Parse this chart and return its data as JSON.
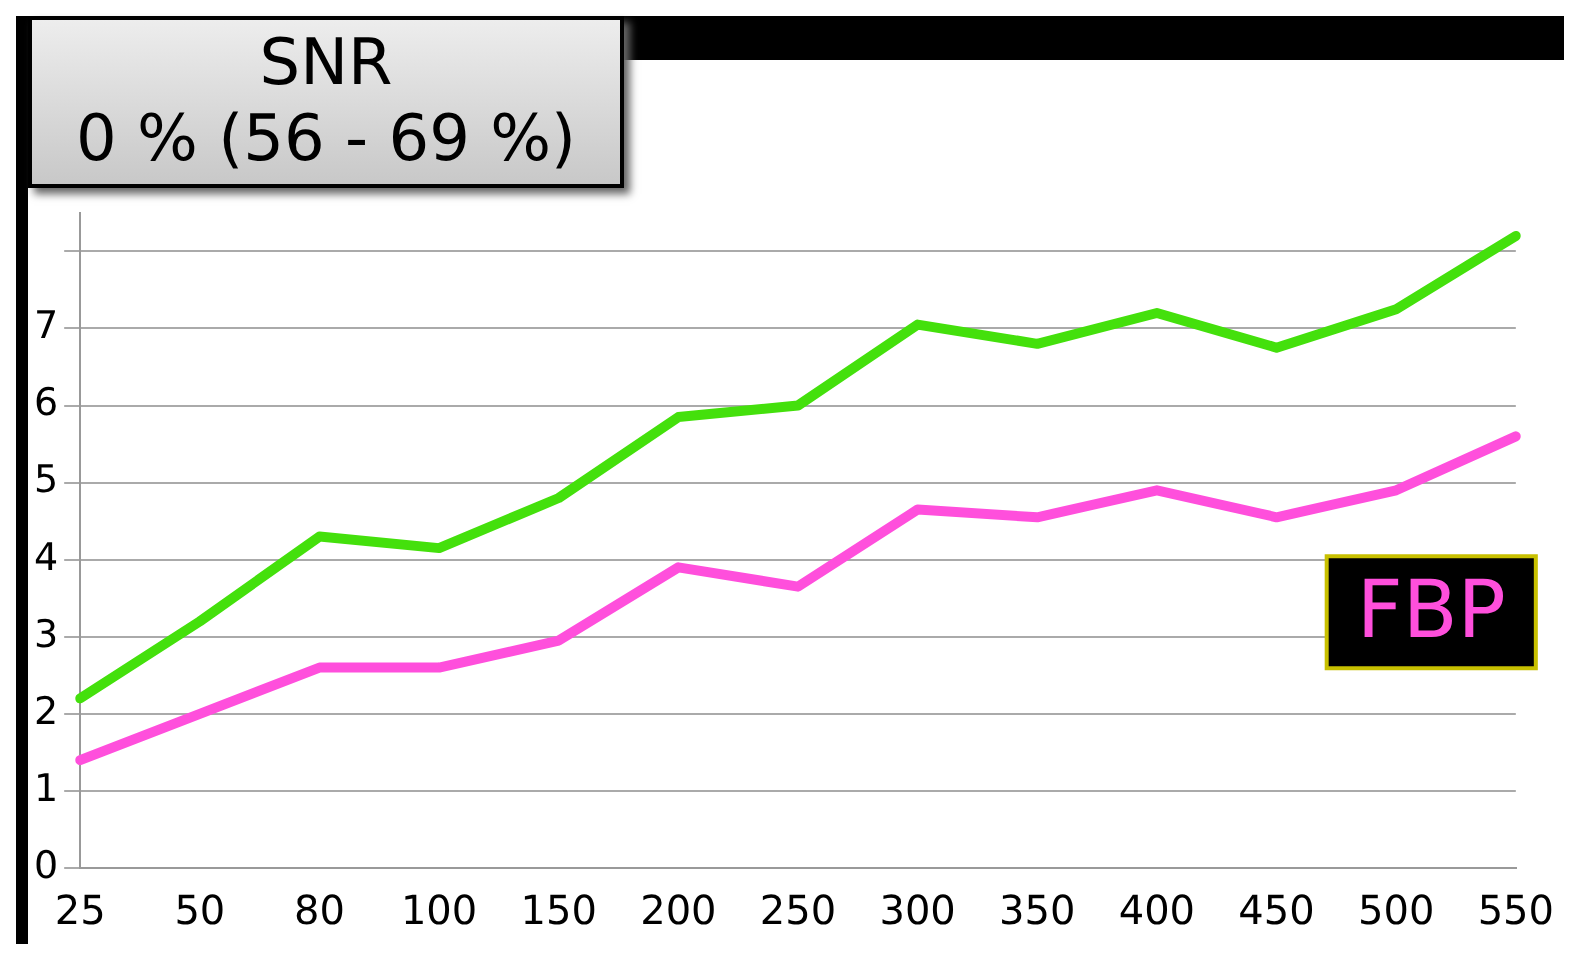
{
  "chart_data": {
    "type": "line",
    "title": "SNR",
    "subtitle": "0 % (56 - 69 %)",
    "categories": [
      "25",
      "50",
      "80",
      "100",
      "150",
      "200",
      "250",
      "300",
      "350",
      "400",
      "450",
      "500",
      "550"
    ],
    "series": [
      {
        "color": "#44e00c",
        "values": [
          2.2,
          3.2,
          4.3,
          4.15,
          4.8,
          5.85,
          6.0,
          7.05,
          6.8,
          7.2,
          6.75,
          7.25,
          8.2
        ]
      },
      {
        "name": "FBP",
        "color": "#ff4fdc",
        "values": [
          1.4,
          2.0,
          2.6,
          2.6,
          2.95,
          3.9,
          3.65,
          4.65,
          4.55,
          4.9,
          4.55,
          4.9,
          5.6
        ]
      }
    ],
    "ylim": [
      0,
      8.5
    ],
    "yticks": [
      0,
      1,
      2,
      3,
      4,
      5,
      6,
      7,
      {
        "value": 8,
        "label": null
      }
    ],
    "grid": "y",
    "legend": false,
    "marker": "none",
    "line_style": "solid"
  }
}
